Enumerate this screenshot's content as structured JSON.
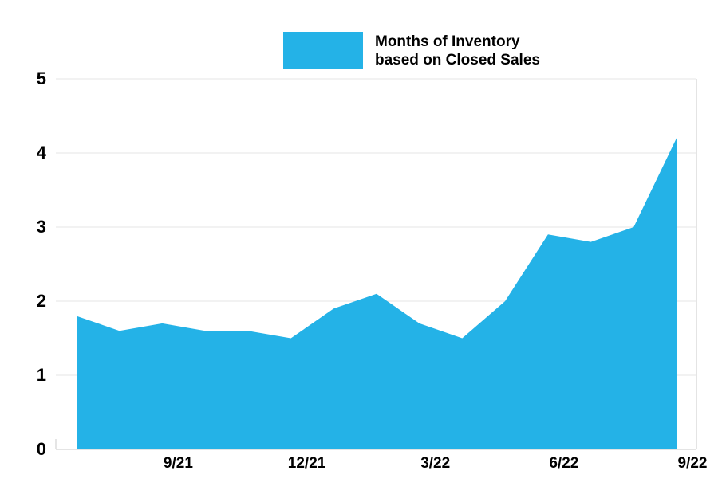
{
  "legend": {
    "line1": "Months of Inventory",
    "line2": "based on Closed Sales"
  },
  "chart_data": {
    "type": "area",
    "title": "Months of Inventory based on Closed Sales",
    "x": [
      "7/21",
      "8/21",
      "9/21",
      "10/21",
      "11/21",
      "12/21",
      "1/22",
      "2/22",
      "3/22",
      "4/22",
      "5/22",
      "6/22",
      "7/22",
      "8/22",
      "9/22"
    ],
    "values": [
      1.8,
      1.6,
      1.7,
      1.6,
      1.6,
      1.5,
      1.9,
      2.1,
      1.7,
      1.5,
      2.0,
      2.9,
      2.8,
      3.0,
      4.2
    ],
    "x_tick_labels": [
      "9/21",
      "12/21",
      "3/22",
      "6/22",
      "9/22"
    ],
    "y_ticks": [
      0,
      1,
      2,
      3,
      4,
      5
    ],
    "ylim": [
      0,
      5
    ],
    "xlabel": "",
    "ylabel": "",
    "grid": "horizontal",
    "legend_position": "top-center",
    "colors": {
      "area": "#24b2e7",
      "grid": "#ededed",
      "axis": "#dcdcdc",
      "text": "#000000"
    }
  }
}
